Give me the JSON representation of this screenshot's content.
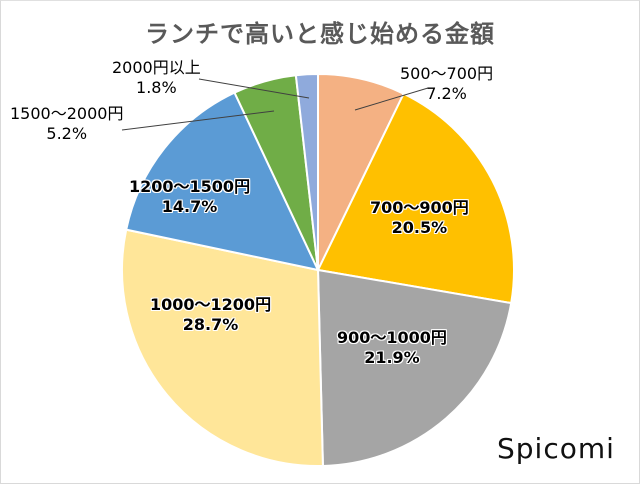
{
  "chart_data": {
    "type": "pie",
    "title": "ランチで高いと感じ始める金額",
    "start_angle_deg": 0,
    "direction": "clockwise",
    "categories": [
      "500〜700円",
      "700〜900円",
      "900〜1000円",
      "1000〜1200円",
      "1200〜1500円",
      "1500〜2000円",
      "2000円以上"
    ],
    "values": [
      7.2,
      20.5,
      21.9,
      28.7,
      14.7,
      5.2,
      1.8
    ],
    "value_labels": [
      "7.2%",
      "20.5%",
      "21.9%",
      "28.7%",
      "14.7%",
      "5.2%",
      "1.8%"
    ],
    "colors": [
      "#F4B183",
      "#FFC000",
      "#A5A5A5",
      "#FFE699",
      "#5B9BD5",
      "#70AD47",
      "#8FAADC"
    ],
    "legend": "none (data labels with category names)",
    "center": [
      318,
      270
    ],
    "radius": 196
  },
  "watermark": "Spicomi"
}
